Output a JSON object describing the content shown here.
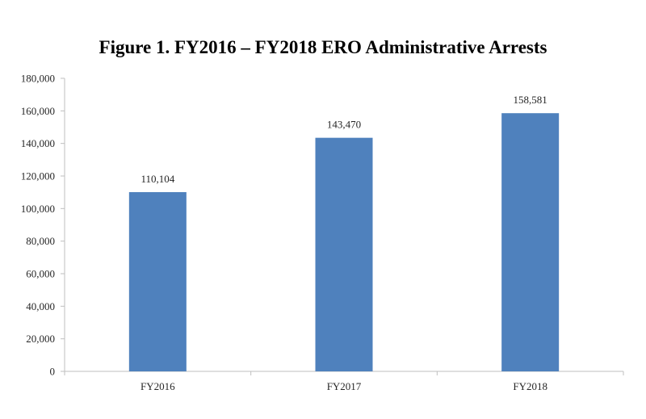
{
  "chart_data": {
    "type": "bar",
    "title": "Figure 1. FY2016 – FY2018 ERO Administrative Arrests",
    "categories": [
      "FY2016",
      "FY2017",
      "FY2018"
    ],
    "values": [
      110104,
      143470,
      158581
    ],
    "data_labels": [
      "110,104",
      "143,470",
      "158,581"
    ],
    "ylim": [
      0,
      180000
    ],
    "yticks": [
      0,
      20000,
      40000,
      60000,
      80000,
      100000,
      120000,
      140000,
      160000,
      180000
    ],
    "ytick_labels": [
      "0",
      "20,000",
      "40,000",
      "60,000",
      "80,000",
      "100,000",
      "120,000",
      "140,000",
      "160,000",
      "180,000"
    ],
    "grid": false,
    "legend": "none",
    "bar_color": "#4F81BD",
    "axis_color": "#BFBFBF"
  }
}
